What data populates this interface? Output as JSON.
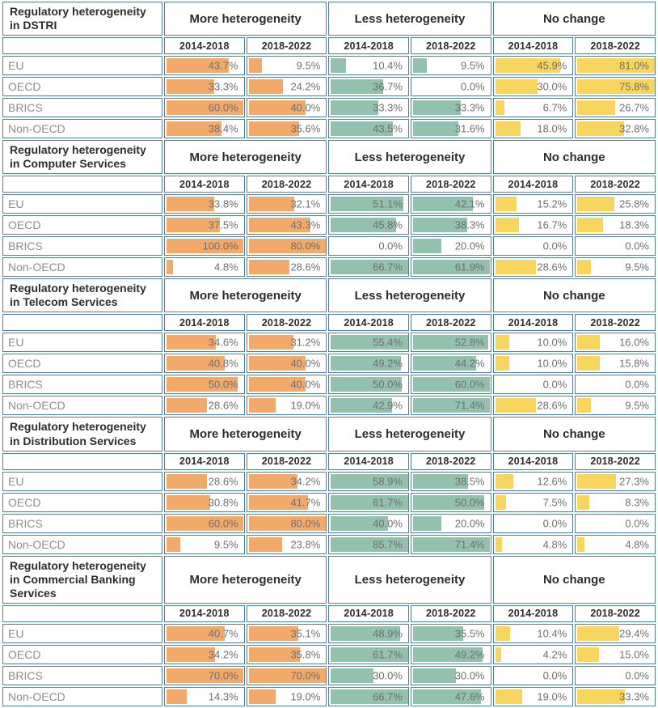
{
  "title": "Regulatory heterogeneity change tables",
  "colors": {
    "more_heterogeneity_bar": "#f2aa6b",
    "less_heterogeneity_bar": "#92c1ae",
    "no_change_bar": "#f8d55e",
    "grid_border": "#4a82a4",
    "header_text": "#2d2d2d",
    "value_text": "#6f6f6f",
    "row_label_text": "#8d8d8d"
  },
  "chart_data": {
    "type": "bar",
    "description": "Five stacked tables with in-cell horizontal bars showing percent of economies with more heterogeneity, less heterogeneity, or no change in regulatory heterogeneity, for two periods. Values in percent. Bar width is proportional to value (about 1.8% of cell width per point, capped at full cell).",
    "group_headers": [
      "More heterogeneity",
      "Less heterogeneity",
      "No change"
    ],
    "period_headers": [
      "2014-2018",
      "2018-2022"
    ],
    "row_categories": [
      "EU",
      "OECD",
      "BRICS",
      "Non-OECD"
    ],
    "value_column_order": [
      "More heterogeneity 2014-2018",
      "More heterogeneity 2018-2022",
      "Less heterogeneity 2014-2018",
      "Less heterogeneity 2018-2022",
      "No change 2014-2018",
      "No change 2018-2022"
    ],
    "unit": "%",
    "sections": [
      {
        "title": "Regulatory heterogeneity in DSTRI",
        "rows": [
          {
            "label": "EU",
            "values": [
              43.7,
              9.5,
              10.4,
              9.5,
              45.9,
              81.0
            ]
          },
          {
            "label": "OECD",
            "values": [
              33.3,
              24.2,
              36.7,
              0.0,
              30.0,
              75.8
            ]
          },
          {
            "label": "BRICS",
            "values": [
              60.0,
              40.0,
              33.3,
              33.3,
              6.7,
              26.7
            ]
          },
          {
            "label": "Non-OECD",
            "values": [
              38.4,
              35.6,
              43.5,
              31.6,
              18.0,
              32.8
            ]
          }
        ]
      },
      {
        "title": "Regulatory heterogeneity in Computer Services",
        "rows": [
          {
            "label": "EU",
            "values": [
              33.8,
              32.1,
              51.1,
              42.1,
              15.2,
              25.8
            ]
          },
          {
            "label": "OECD",
            "values": [
              37.5,
              43.3,
              45.8,
              38.3,
              16.7,
              18.3
            ]
          },
          {
            "label": "BRICS",
            "values": [
              100.0,
              80.0,
              0.0,
              20.0,
              0.0,
              0.0
            ]
          },
          {
            "label": "Non-OECD",
            "values": [
              4.8,
              28.6,
              66.7,
              61.9,
              28.6,
              9.5
            ]
          }
        ]
      },
      {
        "title": "Regulatory heterogeneity in Telecom Services",
        "rows": [
          {
            "label": "EU",
            "values": [
              34.6,
              31.2,
              55.4,
              52.8,
              10.0,
              16.0
            ]
          },
          {
            "label": "OECD",
            "values": [
              40.8,
              40.0,
              49.2,
              44.2,
              10.0,
              15.8
            ]
          },
          {
            "label": "BRICS",
            "values": [
              50.0,
              40.0,
              50.0,
              60.0,
              0.0,
              0.0
            ]
          },
          {
            "label": "Non-OECD",
            "values": [
              28.6,
              19.0,
              42.9,
              71.4,
              28.6,
              9.5
            ]
          }
        ]
      },
      {
        "title": "Regulatory heterogeneity in Distribution Services",
        "rows": [
          {
            "label": "EU",
            "values": [
              28.6,
              34.2,
              58.9,
              38.5,
              12.6,
              27.3
            ]
          },
          {
            "label": "OECD",
            "values": [
              30.8,
              41.7,
              61.7,
              50.0,
              7.5,
              8.3
            ]
          },
          {
            "label": "BRICS",
            "values": [
              60.0,
              80.0,
              40.0,
              20.0,
              0.0,
              0.0
            ]
          },
          {
            "label": "Non-OECD",
            "values": [
              9.5,
              23.8,
              85.7,
              71.4,
              4.8,
              4.8
            ]
          }
        ]
      },
      {
        "title": "Regulatory heterogeneity in Commercial Banking Services",
        "rows": [
          {
            "label": "EU",
            "values": [
              40.7,
              35.1,
              48.9,
              35.5,
              10.4,
              29.4
            ]
          },
          {
            "label": "OECD",
            "values": [
              34.2,
              35.8,
              61.7,
              49.2,
              4.2,
              15.0
            ]
          },
          {
            "label": "BRICS",
            "values": [
              70.0,
              70.0,
              30.0,
              30.0,
              0.0,
              0.0
            ]
          },
          {
            "label": "Non-OECD",
            "values": [
              14.3,
              19.0,
              66.7,
              47.6,
              19.0,
              33.3
            ]
          }
        ]
      }
    ],
    "layout": {
      "bar_scale_percent_per_point": 1.8,
      "grid": true,
      "legend_position": "none"
    }
  }
}
